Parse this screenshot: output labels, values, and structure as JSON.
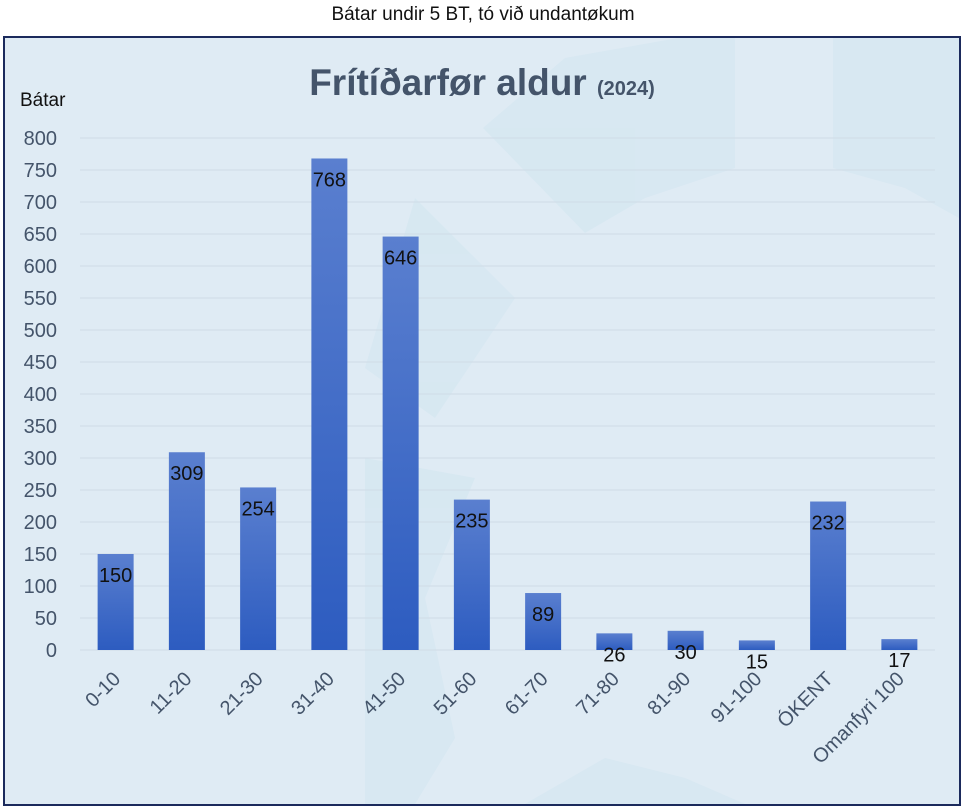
{
  "caption": "Bátar undir 5 BT, tó við undantøkum",
  "chart_data": {
    "type": "bar",
    "title": "Frítíðarfør  aldur",
    "subtitle": "(2024)",
    "ylabel": "Bátar",
    "xlabel": "",
    "categories": [
      "0-10",
      "11-20",
      "21-30",
      "31-40",
      "41-50",
      "51-60",
      "61-70",
      "71-80",
      "81-90",
      "91-100",
      "ÓKENT",
      "Omanfyri 100"
    ],
    "values": [
      150,
      309,
      254,
      768,
      646,
      235,
      89,
      26,
      30,
      15,
      232,
      17
    ],
    "ylim": [
      0,
      800
    ],
    "yticks": [
      0,
      50,
      100,
      150,
      200,
      250,
      300,
      350,
      400,
      450,
      500,
      550,
      600,
      650,
      700,
      750,
      800
    ],
    "grid": true,
    "legend": "none",
    "colors": {
      "bar_top": "#5a7fcf",
      "bar_bottom": "#2d5cc0",
      "grid": "#cfdbe6",
      "background": "#dfebf4",
      "frame": "#1b2a5c",
      "title": "#44546a",
      "axis_text": "#44546a",
      "value_text": "#111111"
    }
  }
}
